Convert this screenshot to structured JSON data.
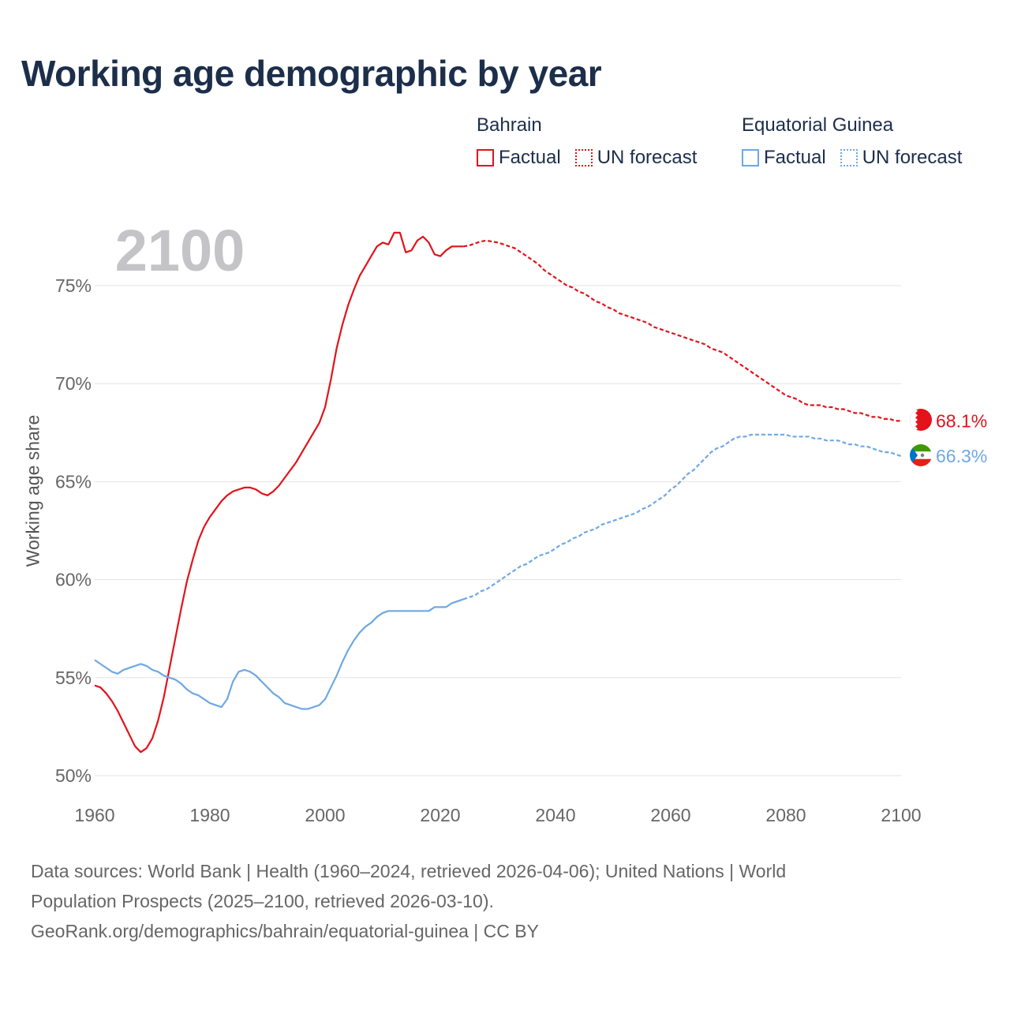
{
  "title": "Working age demographic by year",
  "year_watermark": "2100",
  "legend": {
    "groups": [
      {
        "name": "Bahrain",
        "color": "#e3121b",
        "factual": "Factual",
        "forecast": "UN forecast"
      },
      {
        "name": "Equatorial Guinea",
        "color": "#6fa8e2",
        "factual": "Factual",
        "forecast": "UN forecast"
      }
    ]
  },
  "footer": {
    "line1": "Data sources: World Bank | Health (1960–2024, retrieved 2026-04-06); United Nations | World",
    "line2": "Population Prospects (2025–2100, retrieved 2026-03-10).",
    "line3": "GeoRank.org/demographics/bahrain/equatorial-guinea | CC BY"
  },
  "chart_data": {
    "type": "line",
    "title": "Working age demographic by year",
    "xlabel": "",
    "ylabel": "Working age share",
    "xlim": [
      1960,
      2100
    ],
    "ylim": [
      49.5,
      76.5
    ],
    "xticks": [
      1960,
      1980,
      2000,
      2020,
      2040,
      2060,
      2080,
      2100
    ],
    "yticks": [
      50,
      55,
      60,
      65,
      70,
      75
    ],
    "ytick_labels": [
      "50%",
      "55%",
      "60%",
      "65%",
      "70%",
      "75%"
    ],
    "forecast_start": 2024,
    "series": [
      {
        "name": "Bahrain",
        "color": "#e3121b",
        "end_label": "68.1%",
        "points": [
          [
            1960,
            54.6
          ],
          [
            1961,
            54.5
          ],
          [
            1962,
            54.2
          ],
          [
            1963,
            53.8
          ],
          [
            1964,
            53.3
          ],
          [
            1965,
            52.7
          ],
          [
            1966,
            52.1
          ],
          [
            1967,
            51.5
          ],
          [
            1968,
            51.2
          ],
          [
            1969,
            51.4
          ],
          [
            1970,
            51.9
          ],
          [
            1971,
            52.8
          ],
          [
            1972,
            54.0
          ],
          [
            1973,
            55.5
          ],
          [
            1974,
            57.0
          ],
          [
            1975,
            58.5
          ],
          [
            1976,
            59.9
          ],
          [
            1977,
            61.0
          ],
          [
            1978,
            62.0
          ],
          [
            1979,
            62.7
          ],
          [
            1980,
            63.2
          ],
          [
            1981,
            63.6
          ],
          [
            1982,
            64.0
          ],
          [
            1983,
            64.3
          ],
          [
            1984,
            64.5
          ],
          [
            1985,
            64.6
          ],
          [
            1986,
            64.7
          ],
          [
            1987,
            64.7
          ],
          [
            1988,
            64.6
          ],
          [
            1989,
            64.4
          ],
          [
            1990,
            64.3
          ],
          [
            1991,
            64.5
          ],
          [
            1992,
            64.8
          ],
          [
            1993,
            65.2
          ],
          [
            1994,
            65.6
          ],
          [
            1995,
            66.0
          ],
          [
            1996,
            66.5
          ],
          [
            1997,
            67.0
          ],
          [
            1998,
            67.5
          ],
          [
            1999,
            68.0
          ],
          [
            2000,
            68.8
          ],
          [
            2001,
            70.2
          ],
          [
            2002,
            71.8
          ],
          [
            2003,
            73.0
          ],
          [
            2004,
            74.0
          ],
          [
            2005,
            74.8
          ],
          [
            2006,
            75.5
          ],
          [
            2007,
            76.0
          ],
          [
            2008,
            76.5
          ],
          [
            2009,
            77.0
          ],
          [
            2010,
            77.2
          ],
          [
            2011,
            77.1
          ],
          [
            2012,
            77.7
          ],
          [
            2013,
            77.7
          ],
          [
            2014,
            76.7
          ],
          [
            2015,
            76.8
          ],
          [
            2016,
            77.3
          ],
          [
            2017,
            77.5
          ],
          [
            2018,
            77.2
          ],
          [
            2019,
            76.6
          ],
          [
            2020,
            76.5
          ],
          [
            2021,
            76.8
          ],
          [
            2022,
            77.0
          ],
          [
            2023,
            77.0
          ],
          [
            2024,
            77.0
          ],
          [
            2025,
            77.05
          ],
          [
            2026,
            77.15
          ],
          [
            2027,
            77.25
          ],
          [
            2028,
            77.3
          ],
          [
            2029,
            77.25
          ],
          [
            2030,
            77.2
          ],
          [
            2031,
            77.1
          ],
          [
            2032,
            77.0
          ],
          [
            2033,
            76.9
          ],
          [
            2034,
            76.7
          ],
          [
            2035,
            76.5
          ],
          [
            2036,
            76.3
          ],
          [
            2037,
            76.1
          ],
          [
            2038,
            75.8
          ],
          [
            2039,
            75.6
          ],
          [
            2040,
            75.4
          ],
          [
            2041,
            75.2
          ],
          [
            2042,
            75.0
          ],
          [
            2043,
            74.9
          ],
          [
            2044,
            74.7
          ],
          [
            2045,
            74.6
          ],
          [
            2046,
            74.4
          ],
          [
            2047,
            74.2
          ],
          [
            2048,
            74.1
          ],
          [
            2049,
            73.9
          ],
          [
            2050,
            73.8
          ],
          [
            2051,
            73.6
          ],
          [
            2052,
            73.5
          ],
          [
            2053,
            73.4
          ],
          [
            2054,
            73.3
          ],
          [
            2055,
            73.2
          ],
          [
            2056,
            73.1
          ],
          [
            2057,
            72.9
          ],
          [
            2058,
            72.8
          ],
          [
            2059,
            72.7
          ],
          [
            2060,
            72.6
          ],
          [
            2061,
            72.5
          ],
          [
            2062,
            72.4
          ],
          [
            2063,
            72.3
          ],
          [
            2064,
            72.2
          ],
          [
            2065,
            72.1
          ],
          [
            2066,
            72.0
          ],
          [
            2067,
            71.8
          ],
          [
            2068,
            71.7
          ],
          [
            2069,
            71.6
          ],
          [
            2070,
            71.4
          ],
          [
            2071,
            71.2
          ],
          [
            2072,
            71.0
          ],
          [
            2073,
            70.8
          ],
          [
            2074,
            70.6
          ],
          [
            2075,
            70.4
          ],
          [
            2076,
            70.2
          ],
          [
            2077,
            70.0
          ],
          [
            2078,
            69.8
          ],
          [
            2079,
            69.6
          ],
          [
            2080,
            69.4
          ],
          [
            2081,
            69.3
          ],
          [
            2082,
            69.2
          ],
          [
            2083,
            69.0
          ],
          [
            2084,
            68.9
          ],
          [
            2085,
            68.9
          ],
          [
            2086,
            68.9
          ],
          [
            2087,
            68.8
          ],
          [
            2088,
            68.8
          ],
          [
            2089,
            68.7
          ],
          [
            2090,
            68.7
          ],
          [
            2091,
            68.6
          ],
          [
            2092,
            68.5
          ],
          [
            2093,
            68.5
          ],
          [
            2094,
            68.4
          ],
          [
            2095,
            68.3
          ],
          [
            2096,
            68.3
          ],
          [
            2097,
            68.2
          ],
          [
            2098,
            68.2
          ],
          [
            2099,
            68.1
          ],
          [
            2100,
            68.1
          ]
        ]
      },
      {
        "name": "Equatorial Guinea",
        "color": "#6fa8e2",
        "end_label": "66.3%",
        "points": [
          [
            1960,
            55.9
          ],
          [
            1961,
            55.7
          ],
          [
            1962,
            55.5
          ],
          [
            1963,
            55.3
          ],
          [
            1964,
            55.2
          ],
          [
            1965,
            55.4
          ],
          [
            1966,
            55.5
          ],
          [
            1967,
            55.6
          ],
          [
            1968,
            55.7
          ],
          [
            1969,
            55.6
          ],
          [
            1970,
            55.4
          ],
          [
            1971,
            55.3
          ],
          [
            1972,
            55.1
          ],
          [
            1973,
            55.0
          ],
          [
            1974,
            54.9
          ],
          [
            1975,
            54.7
          ],
          [
            1976,
            54.4
          ],
          [
            1977,
            54.2
          ],
          [
            1978,
            54.1
          ],
          [
            1979,
            53.9
          ],
          [
            1980,
            53.7
          ],
          [
            1981,
            53.6
          ],
          [
            1982,
            53.5
          ],
          [
            1983,
            53.9
          ],
          [
            1984,
            54.8
          ],
          [
            1985,
            55.3
          ],
          [
            1986,
            55.4
          ],
          [
            1987,
            55.3
          ],
          [
            1988,
            55.1
          ],
          [
            1989,
            54.8
          ],
          [
            1990,
            54.5
          ],
          [
            1991,
            54.2
          ],
          [
            1992,
            54.0
          ],
          [
            1993,
            53.7
          ],
          [
            1994,
            53.6
          ],
          [
            1995,
            53.5
          ],
          [
            1996,
            53.4
          ],
          [
            1997,
            53.4
          ],
          [
            1998,
            53.5
          ],
          [
            1999,
            53.6
          ],
          [
            2000,
            53.9
          ],
          [
            2001,
            54.5
          ],
          [
            2002,
            55.1
          ],
          [
            2003,
            55.8
          ],
          [
            2004,
            56.4
          ],
          [
            2005,
            56.9
          ],
          [
            2006,
            57.3
          ],
          [
            2007,
            57.6
          ],
          [
            2008,
            57.8
          ],
          [
            2009,
            58.1
          ],
          [
            2010,
            58.3
          ],
          [
            2011,
            58.4
          ],
          [
            2012,
            58.4
          ],
          [
            2013,
            58.4
          ],
          [
            2014,
            58.4
          ],
          [
            2015,
            58.4
          ],
          [
            2016,
            58.4
          ],
          [
            2017,
            58.4
          ],
          [
            2018,
            58.4
          ],
          [
            2019,
            58.6
          ],
          [
            2020,
            58.6
          ],
          [
            2021,
            58.6
          ],
          [
            2022,
            58.8
          ],
          [
            2023,
            58.9
          ],
          [
            2024,
            59.0
          ],
          [
            2025,
            59.1
          ],
          [
            2026,
            59.2
          ],
          [
            2027,
            59.4
          ],
          [
            2028,
            59.5
          ],
          [
            2029,
            59.7
          ],
          [
            2030,
            59.9
          ],
          [
            2031,
            60.1
          ],
          [
            2032,
            60.3
          ],
          [
            2033,
            60.5
          ],
          [
            2034,
            60.7
          ],
          [
            2035,
            60.8
          ],
          [
            2036,
            61.0
          ],
          [
            2037,
            61.2
          ],
          [
            2038,
            61.3
          ],
          [
            2039,
            61.4
          ],
          [
            2040,
            61.6
          ],
          [
            2041,
            61.8
          ],
          [
            2042,
            61.9
          ],
          [
            2043,
            62.1
          ],
          [
            2044,
            62.2
          ],
          [
            2045,
            62.4
          ],
          [
            2046,
            62.5
          ],
          [
            2047,
            62.6
          ],
          [
            2048,
            62.8
          ],
          [
            2049,
            62.9
          ],
          [
            2050,
            63.0
          ],
          [
            2051,
            63.1
          ],
          [
            2052,
            63.2
          ],
          [
            2053,
            63.3
          ],
          [
            2054,
            63.4
          ],
          [
            2055,
            63.6
          ],
          [
            2056,
            63.7
          ],
          [
            2057,
            63.9
          ],
          [
            2058,
            64.1
          ],
          [
            2059,
            64.3
          ],
          [
            2060,
            64.6
          ],
          [
            2061,
            64.8
          ],
          [
            2062,
            65.1
          ],
          [
            2063,
            65.4
          ],
          [
            2064,
            65.6
          ],
          [
            2065,
            65.9
          ],
          [
            2066,
            66.2
          ],
          [
            2067,
            66.5
          ],
          [
            2068,
            66.7
          ],
          [
            2069,
            66.8
          ],
          [
            2070,
            67.0
          ],
          [
            2071,
            67.2
          ],
          [
            2072,
            67.3
          ],
          [
            2073,
            67.3
          ],
          [
            2074,
            67.4
          ],
          [
            2075,
            67.4
          ],
          [
            2076,
            67.4
          ],
          [
            2077,
            67.4
          ],
          [
            2078,
            67.4
          ],
          [
            2079,
            67.4
          ],
          [
            2080,
            67.4
          ],
          [
            2081,
            67.3
          ],
          [
            2082,
            67.3
          ],
          [
            2083,
            67.3
          ],
          [
            2084,
            67.3
          ],
          [
            2085,
            67.2
          ],
          [
            2086,
            67.2
          ],
          [
            2087,
            67.1
          ],
          [
            2088,
            67.1
          ],
          [
            2089,
            67.1
          ],
          [
            2090,
            67.0
          ],
          [
            2091,
            66.9
          ],
          [
            2092,
            66.9
          ],
          [
            2093,
            66.8
          ],
          [
            2094,
            66.8
          ],
          [
            2095,
            66.7
          ],
          [
            2096,
            66.6
          ],
          [
            2097,
            66.5
          ],
          [
            2098,
            66.5
          ],
          [
            2099,
            66.4
          ],
          [
            2100,
            66.3
          ]
        ]
      }
    ]
  }
}
